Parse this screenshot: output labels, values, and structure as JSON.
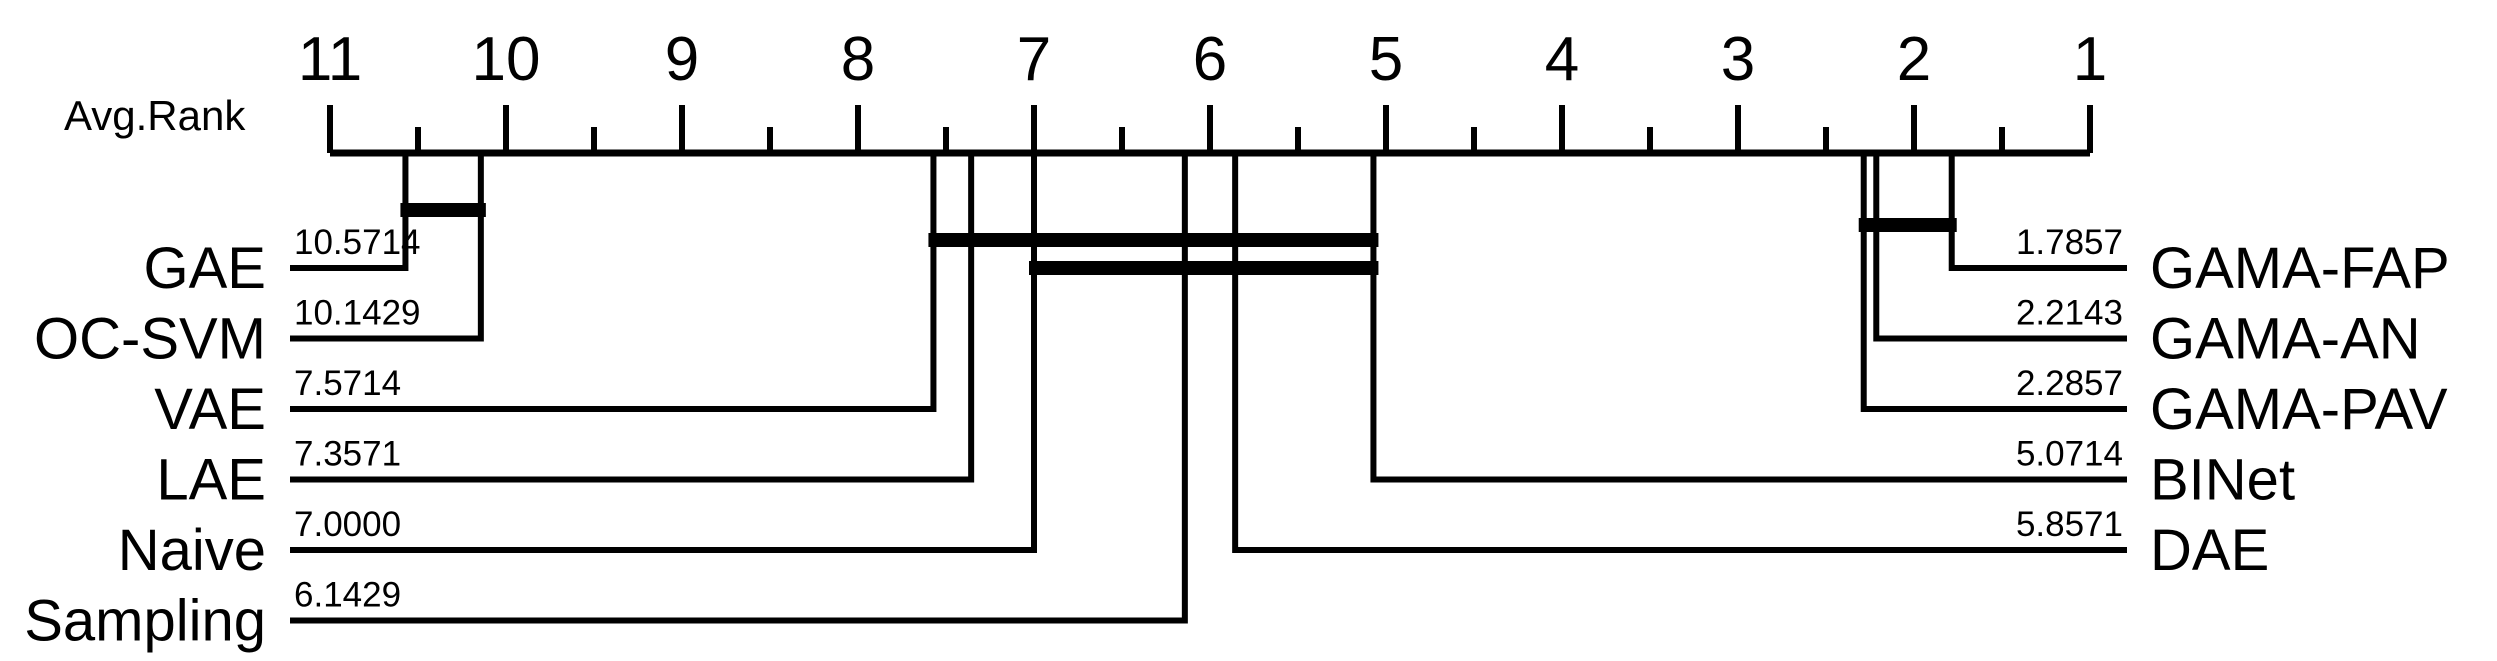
{
  "chart_data": {
    "type": "critical-difference",
    "axis_title": "Avg.Rank",
    "xlim": [
      11,
      1
    ],
    "tick_labels": [
      "11",
      "10",
      "9",
      "8",
      "7",
      "6",
      "5",
      "4",
      "3",
      "2",
      "1"
    ],
    "left_methods": [
      {
        "name": "GAE",
        "rank": 10.5714,
        "rank_label": "10.5714"
      },
      {
        "name": "OC-SVM",
        "rank": 10.1429,
        "rank_label": "10.1429"
      },
      {
        "name": "VAE",
        "rank": 7.5714,
        "rank_label": "7.5714"
      },
      {
        "name": "LAE",
        "rank": 7.3571,
        "rank_label": "7.3571"
      },
      {
        "name": "Naive",
        "rank": 7.0,
        "rank_label": "7.0000"
      },
      {
        "name": "Sampling",
        "rank": 6.1429,
        "rank_label": "6.1429"
      }
    ],
    "right_methods": [
      {
        "name": "GAMA-FAP",
        "rank": 1.7857,
        "rank_label": "1.7857"
      },
      {
        "name": "GAMA-AN",
        "rank": 2.2143,
        "rank_label": "2.2143"
      },
      {
        "name": "GAMA-PAV",
        "rank": 2.2857,
        "rank_label": "2.2857"
      },
      {
        "name": "BINet",
        "rank": 5.0714,
        "rank_label": "5.0714"
      },
      {
        "name": "DAE",
        "rank": 5.8571,
        "rank_label": "5.8571"
      }
    ],
    "cliques": [
      [
        10.5714,
        10.1429
      ],
      [
        7.5714,
        5.0714
      ],
      [
        7.0,
        5.0714
      ],
      [
        2.2857,
        1.7857
      ]
    ],
    "line_color": "#000000"
  }
}
